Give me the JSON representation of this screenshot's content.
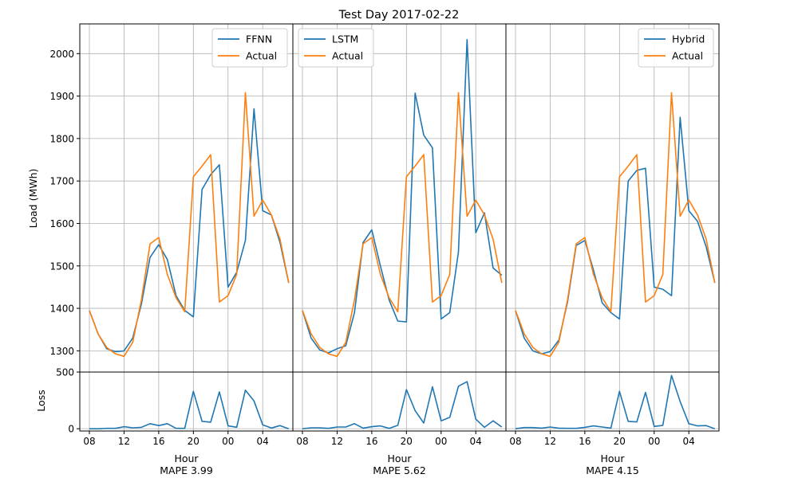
{
  "figure_title": "Test Day 2017-02-22",
  "colors": {
    "predicted": "#1f77b4",
    "actual": "#ff7f0e",
    "grid": "#b0b0b0"
  },
  "y_axis_label": "Load (MWh)",
  "loss_axis_label": "Loss",
  "chart_data": [
    {
      "type": "line",
      "panel": "load",
      "x": [
        "08:00",
        "09:00",
        "10:00",
        "11:00",
        "12:00",
        "13:00",
        "14:00",
        "15:00",
        "16:00",
        "17:00",
        "18:00",
        "19:00",
        "20:00",
        "21:00",
        "22:00",
        "23:00",
        "00:00",
        "01:00",
        "02:00",
        "03:00",
        "04:00",
        "05:00",
        "06:00",
        "07:00"
      ],
      "x_ticks": [
        "08",
        "12",
        "16",
        "20",
        "00",
        "04"
      ],
      "xlabel": "Hour",
      "ylabel": "Load (MWh)",
      "ylim": [
        1250,
        2070
      ],
      "y_ticks": [
        1300,
        1400,
        1500,
        1600,
        1700,
        1800,
        1900,
        2000
      ],
      "grid": true,
      "legend": "top-right",
      "series": [
        {
          "name": "FFNN",
          "values": [
            1395,
            1340,
            1305,
            1298,
            1300,
            1330,
            1410,
            1520,
            1550,
            1515,
            1430,
            1395,
            1380,
            1680,
            1715,
            1738,
            1450,
            1485,
            1560,
            1870,
            1630,
            1620,
            1555,
            1460
          ]
        },
        {
          "name": "Actual",
          "values": [
            1395,
            1340,
            1308,
            1293,
            1287,
            1320,
            1420,
            1552,
            1567,
            1480,
            1425,
            1392,
            1710,
            1735,
            1762,
            1415,
            1430,
            1480,
            1908,
            1617,
            1655,
            1620,
            1563,
            1460
          ]
        }
      ],
      "footer": "MAPE 3.99"
    },
    {
      "type": "line",
      "panel": "load",
      "x": [
        "08:00",
        "09:00",
        "10:00",
        "11:00",
        "12:00",
        "13:00",
        "14:00",
        "15:00",
        "16:00",
        "17:00",
        "18:00",
        "19:00",
        "20:00",
        "21:00",
        "22:00",
        "23:00",
        "00:00",
        "01:00",
        "02:00",
        "03:00",
        "04:00",
        "05:00",
        "06:00",
        "07:00"
      ],
      "x_ticks": [
        "08",
        "12",
        "16",
        "20",
        "00",
        "04"
      ],
      "xlabel": "Hour",
      "ylim": [
        1250,
        2070
      ],
      "grid": true,
      "legend": "top-left",
      "series": [
        {
          "name": "LSTM",
          "values": [
            1395,
            1330,
            1302,
            1295,
            1305,
            1312,
            1390,
            1555,
            1585,
            1500,
            1420,
            1370,
            1368,
            1907,
            1808,
            1778,
            1375,
            1390,
            1533,
            2033,
            1578,
            1625,
            1495,
            1478
          ]
        },
        {
          "name": "Actual",
          "values": [
            1395,
            1340,
            1308,
            1293,
            1287,
            1320,
            1420,
            1552,
            1567,
            1480,
            1425,
            1392,
            1710,
            1735,
            1762,
            1415,
            1430,
            1480,
            1908,
            1617,
            1655,
            1620,
            1563,
            1460
          ]
        }
      ],
      "footer": "MAPE 5.62"
    },
    {
      "type": "line",
      "panel": "load",
      "x": [
        "08:00",
        "09:00",
        "10:00",
        "11:00",
        "12:00",
        "13:00",
        "14:00",
        "15:00",
        "16:00",
        "17:00",
        "18:00",
        "19:00",
        "20:00",
        "21:00",
        "22:00",
        "23:00",
        "00:00",
        "01:00",
        "02:00",
        "03:00",
        "04:00",
        "05:00",
        "06:00",
        "07:00"
      ],
      "x_ticks": [
        "08",
        "12",
        "16",
        "20",
        "00",
        "04"
      ],
      "xlabel": "Hour",
      "ylim": [
        1250,
        2070
      ],
      "grid": true,
      "legend": "top-right",
      "series": [
        {
          "name": "Hybrid",
          "values": [
            1395,
            1330,
            1300,
            1293,
            1298,
            1325,
            1415,
            1548,
            1560,
            1490,
            1413,
            1390,
            1375,
            1700,
            1725,
            1730,
            1450,
            1445,
            1430,
            1850,
            1630,
            1605,
            1545,
            1460
          ]
        },
        {
          "name": "Actual",
          "values": [
            1395,
            1340,
            1308,
            1293,
            1287,
            1320,
            1420,
            1552,
            1567,
            1480,
            1425,
            1392,
            1710,
            1735,
            1762,
            1415,
            1430,
            1480,
            1908,
            1617,
            1655,
            1620,
            1563,
            1460
          ]
        }
      ],
      "footer": "MAPE 4.15"
    },
    {
      "type": "line",
      "panel": "loss",
      "ylim": [
        -20,
        500
      ],
      "y_ticks": [
        0,
        500
      ],
      "ylabel": "Loss",
      "grid": true,
      "series": [
        {
          "values": [
            0,
            0,
            3,
            3,
            18,
            8,
            12,
            45,
            28,
            45,
            3,
            3,
            330,
            65,
            58,
            325,
            25,
            13,
            340,
            245,
            35,
            6,
            28,
            0
          ]
        }
      ]
    },
    {
      "type": "line",
      "panel": "loss",
      "ylim": [
        -20,
        500
      ],
      "grid": true,
      "series": [
        {
          "values": [
            0,
            8,
            8,
            3,
            15,
            15,
            45,
            5,
            18,
            25,
            3,
            30,
            345,
            160,
            50,
            370,
            70,
            100,
            375,
            415,
            85,
            12,
            70,
            15
          ]
        }
      ]
    },
    {
      "type": "line",
      "panel": "loss",
      "ylim": [
        -20,
        500
      ],
      "grid": true,
      "series": [
        {
          "values": [
            0,
            10,
            10,
            5,
            15,
            5,
            3,
            3,
            12,
            25,
            15,
            5,
            330,
            65,
            60,
            320,
            20,
            30,
            470,
            240,
            45,
            25,
            28,
            0
          ]
        }
      ]
    }
  ]
}
